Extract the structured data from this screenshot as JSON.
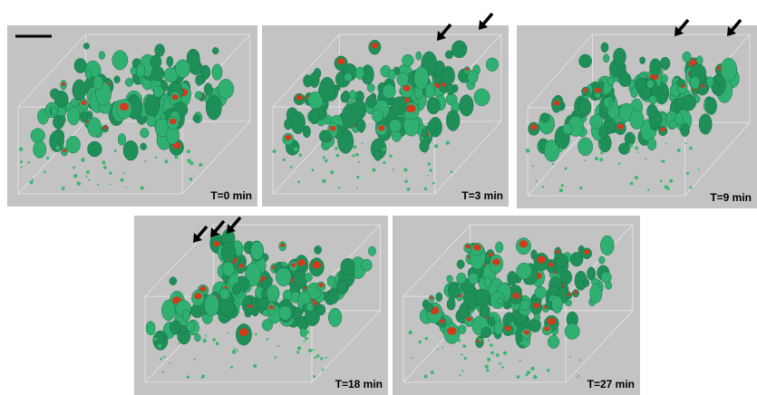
{
  "panels": [
    {
      "label": "T=0 min"
    },
    {
      "label": "T=3 min"
    },
    {
      "label": "T=9 min"
    },
    {
      "label": "T=18 min"
    },
    {
      "label": "T=27 min"
    }
  ]
}
